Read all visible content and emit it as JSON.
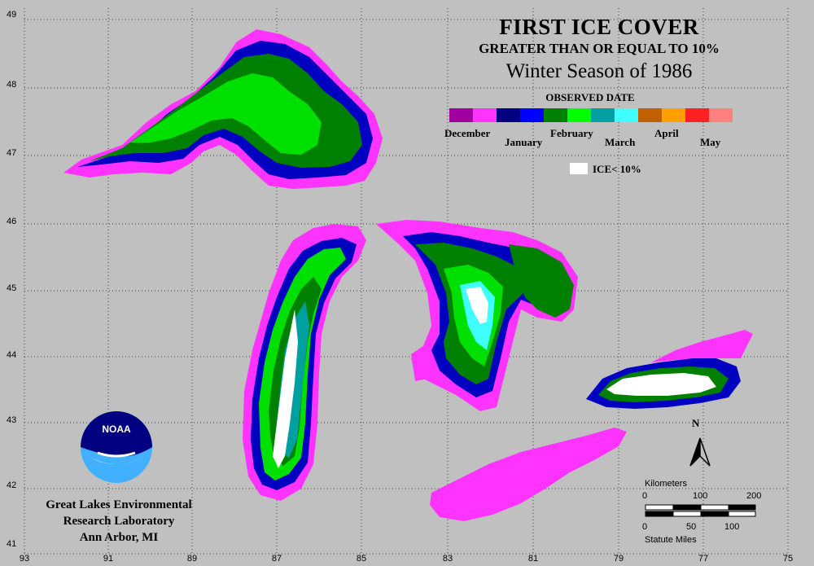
{
  "title": "FIRST ICE COVER",
  "subtitle": "GREATER THAN OR EQUAL TO 10%",
  "season": "Winter Season of 1986",
  "legend": {
    "heading": "OBSERVED DATE",
    "colors": [
      "#a000a0",
      "#ff33ff",
      "#000080",
      "#0000ff",
      "#008000",
      "#00ff00",
      "#00a0a0",
      "#40ffff",
      "#c06000",
      "#ffa000",
      "#ff2020",
      "#ff8080"
    ],
    "months": [
      "December",
      "January",
      "February",
      "March",
      "April",
      "May"
    ],
    "ice_label": "ICE< 10%"
  },
  "latitudes": [
    "49",
    "48",
    "47",
    "46",
    "45",
    "44",
    "43",
    "42",
    "41"
  ],
  "longitudes": [
    "93",
    "91",
    "89",
    "87",
    "85",
    "83",
    "81",
    "79",
    "77",
    "75"
  ],
  "lab": {
    "line1": "Great Lakes Environmental",
    "line2": "Research Laboratory",
    "line3": "Ann Arbor, MI"
  },
  "logo_text": "NOAA",
  "scale": {
    "km_label": "Kilometers",
    "km_ticks": [
      "0",
      "100",
      "200"
    ],
    "mi_label": "Statute Miles",
    "mi_ticks": [
      "0",
      "50",
      "100"
    ]
  },
  "north": "N"
}
